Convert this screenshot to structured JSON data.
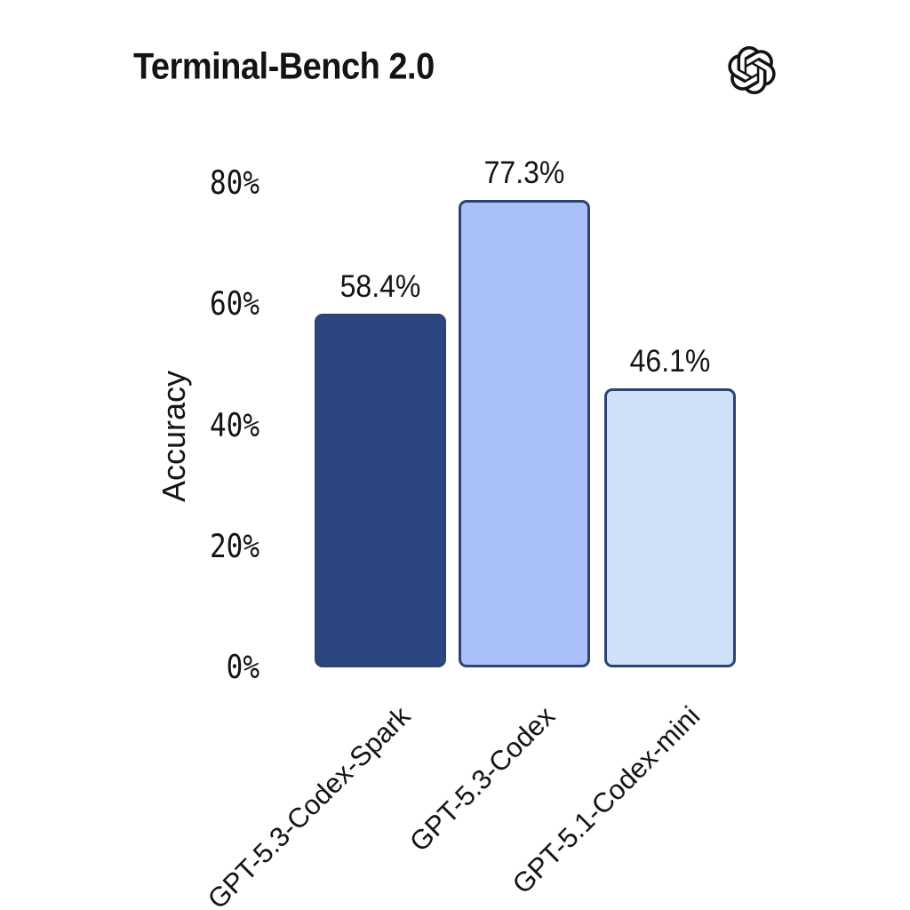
{
  "header": {
    "logo_icon": "openai-logo"
  },
  "chart_data": {
    "type": "bar",
    "title": "Terminal-Bench 2.0",
    "xlabel": "",
    "ylabel": "Accuracy",
    "categories": [
      "GPT-5.3-Codex-Spark",
      "GPT-5.3-Codex",
      "GPT-5.1-Codex-mini"
    ],
    "values": [
      58.4,
      77.3,
      46.1
    ],
    "value_labels": [
      "58.4%",
      "77.3%",
      "46.1%"
    ],
    "yticks": [
      {
        "label": "0%",
        "value": 0
      },
      {
        "label": "20%",
        "value": 20
      },
      {
        "label": "40%",
        "value": 40
      },
      {
        "label": "60%",
        "value": 60
      },
      {
        "label": "80%",
        "value": 80
      }
    ],
    "ylim": [
      0,
      85
    ],
    "grid": false,
    "legend": null,
    "colors": {
      "bars": [
        "#2b4680",
        "#a9c0f8",
        "#d0e0f8"
      ],
      "bar_border": "#2e4372",
      "text": "#141414",
      "background": "#ffffff"
    }
  }
}
